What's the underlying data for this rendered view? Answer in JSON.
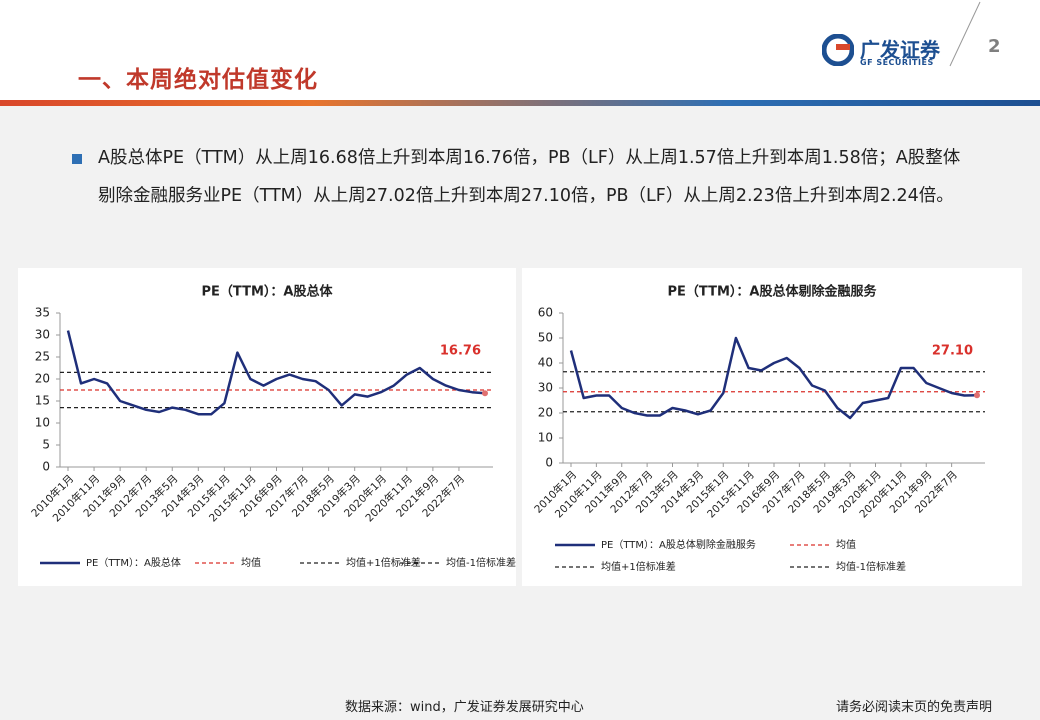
{
  "header": {
    "title": "一、本周绝对估值变化",
    "logo": "广发证券",
    "logo_en": "GF SECURITIES",
    "page": "2"
  },
  "bullet": "A股总体PE（TTM）从上周16.68倍上升到本周16.76倍，PB（LF）从上周1.57倍上升到本周1.58倍；A股整体剔除金融服务业PE（TTM）从上周27.02倍上升到本周27.10倍，PB（LF）从上周2.23倍上升到本周2.24倍。",
  "footer": {
    "source": "数据来源：wind，广发证券发展研究中心",
    "disclaimer": "请务必阅读末页的免责声明"
  },
  "chart_data": [
    {
      "type": "line",
      "title": "PE（TTM）：A股总体",
      "categories": [
        "2010年1月",
        null,
        "2010年11月",
        null,
        "2011年9月",
        null,
        "2012年7月",
        null,
        "2013年5月",
        null,
        "2014年3月",
        null,
        "2015年1月",
        null,
        "2015年11月",
        null,
        "2016年9月",
        null,
        "2017年7月",
        null,
        "2018年5月",
        null,
        "2019年3月",
        null,
        "2020年1月",
        null,
        "2020年11月",
        null,
        "2021年9月",
        null,
        "2022年7月",
        null,
        null
      ],
      "series": [
        {
          "name": "PE（TTM）：A股总体",
          "color": "#1f2f7a",
          "values": [
            31,
            19,
            20,
            19,
            15,
            14,
            13,
            12.5,
            13.5,
            13,
            12,
            12,
            14.5,
            26,
            20,
            18.5,
            20,
            21,
            20,
            19.5,
            17.5,
            14,
            16.5,
            16,
            17,
            18.5,
            21,
            22.5,
            20,
            18.5,
            17.5,
            17,
            16.76
          ]
        }
      ],
      "hlines": [
        {
          "name": "均值",
          "value": 17.5,
          "color": "#d9302b"
        },
        {
          "name": "均值+1倍标准差",
          "value": 21.5,
          "color": "#222222"
        },
        {
          "name": "均值-1倍标准差",
          "value": 13.5,
          "color": "#222222"
        }
      ],
      "ylim": [
        0,
        35
      ],
      "yticks": [
        0,
        5,
        10,
        15,
        20,
        25,
        30,
        35
      ]
    },
    {
      "type": "line",
      "title": "PE（TTM）：A股总体剔除金融服务",
      "categories": [
        "2010年1月",
        null,
        "2010年11月",
        null,
        "2011年9月",
        null,
        "2012年7月",
        null,
        "2013年5月",
        null,
        "2014年3月",
        null,
        "2015年1月",
        null,
        "2015年11月",
        null,
        "2016年9月",
        null,
        "2017年7月",
        null,
        "2018年5月",
        null,
        "2019年3月",
        null,
        "2020年1月",
        null,
        "2020年11月",
        null,
        "2021年9月",
        null,
        "2022年7月",
        null,
        null
      ],
      "series": [
        {
          "name": "PE（TTM）：A股总体剔除金融服务",
          "color": "#1f2f7a",
          "values": [
            45,
            26,
            27,
            27,
            22,
            20,
            19,
            19,
            22,
            21,
            19.5,
            21,
            28,
            50,
            38,
            37,
            40,
            42,
            38,
            31,
            29,
            22,
            18,
            24,
            25,
            26,
            38,
            38,
            32,
            30,
            28,
            27,
            27.1
          ]
        }
      ],
      "value_labels": [
        null,
        null,
        null,
        null,
        null,
        null,
        null,
        null,
        null,
        null,
        null,
        null,
        null,
        null,
        null,
        null,
        null,
        null,
        null,
        null,
        null,
        null,
        null,
        null,
        null,
        null,
        null,
        null,
        null,
        null,
        null,
        null,
        "27.10"
      ],
      "hlines": [
        {
          "name": "均值",
          "value": 28.5,
          "color": "#d9302b"
        },
        {
          "name": "均值+1倍标准差",
          "value": 36.5,
          "color": "#222222"
        },
        {
          "name": "均值-1倍标准差",
          "value": 20.5,
          "color": "#222222"
        }
      ],
      "ylim": [
        0,
        60
      ],
      "yticks": [
        0,
        10,
        20,
        30,
        40,
        50,
        60
      ]
    }
  ]
}
